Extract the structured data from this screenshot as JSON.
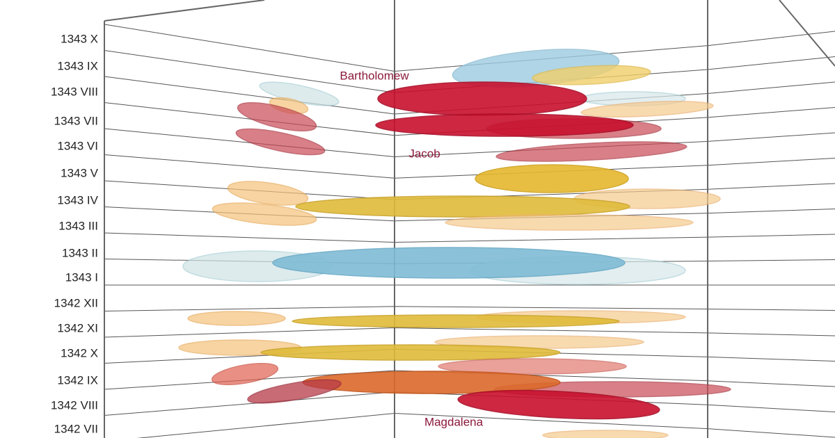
{
  "row_labels": [
    "1343 X",
    "1343 IX",
    "1343 VIII",
    "1343 VII",
    "1343 VI",
    "1343 V",
    "1343 IV",
    "1343 III",
    "1343 II",
    "1343 I",
    "1342 XII",
    "1342 XI",
    "1342 X",
    "1342 IX",
    "1342 VIII",
    "1342 VII"
  ],
  "annotations": [
    "Bartholomew",
    "Jacob",
    "Magdalena"
  ]
}
